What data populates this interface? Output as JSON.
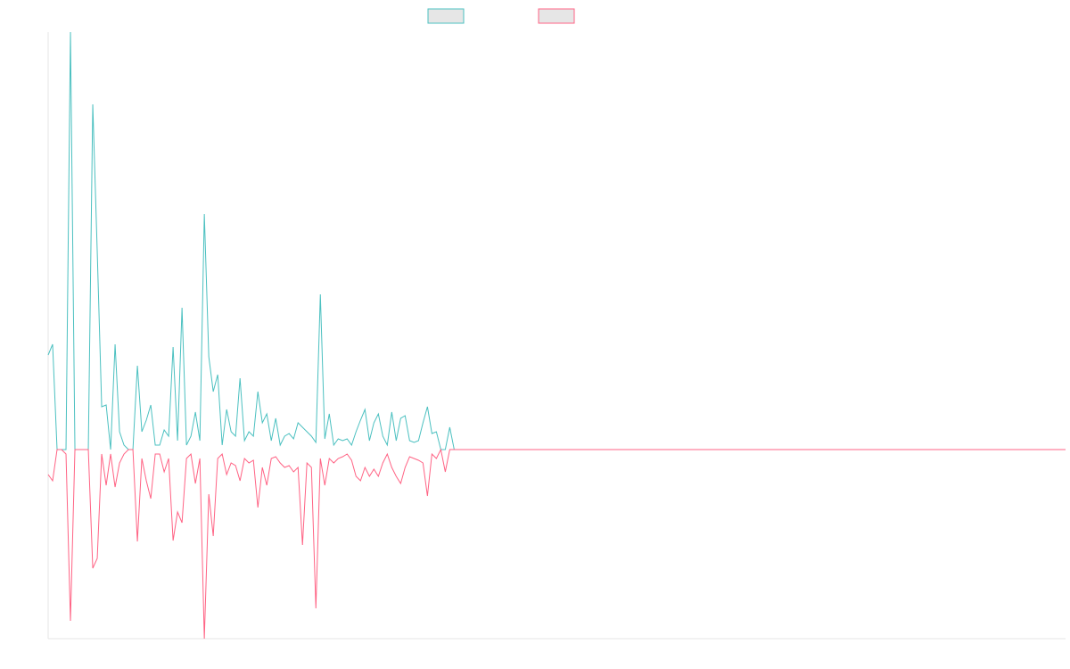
{
  "chart_data": {
    "type": "line",
    "ylim": [
      -212,
      468
    ],
    "series": [
      {
        "color": "#4bc0c0",
        "values": [
          106,
          118,
          0,
          0,
          0,
          468,
          0,
          0,
          0,
          0,
          387,
          222,
          48,
          50,
          0,
          118,
          20,
          5,
          0,
          0,
          94,
          20,
          33,
          50,
          5,
          5,
          22,
          15,
          115,
          10,
          159,
          5,
          15,
          42,
          10,
          264,
          104,
          65,
          84,
          5,
          45,
          20,
          15,
          80,
          10,
          20,
          15,
          65,
          30,
          40,
          10,
          35,
          5,
          15,
          18,
          12,
          30,
          25,
          20,
          15,
          8,
          174,
          12,
          40,
          5,
          12,
          10,
          12,
          5,
          20,
          33,
          45,
          10,
          30,
          40,
          15,
          5,
          42,
          10,
          35,
          38,
          10,
          8,
          10,
          30,
          48,
          18,
          20,
          0,
          0,
          25,
          0,
          0,
          0,
          0,
          0,
          0,
          0,
          0,
          0,
          0,
          0,
          0,
          0,
          0,
          0,
          0,
          0,
          0,
          0,
          0,
          0,
          0,
          0,
          0,
          0,
          0,
          0,
          0,
          0,
          0,
          0,
          0,
          0,
          0,
          0,
          0,
          0,
          0,
          0,
          0,
          0,
          0,
          0,
          0,
          0,
          0,
          0,
          0,
          0,
          0,
          0,
          0,
          0,
          0,
          0,
          0,
          0,
          0,
          0,
          0,
          0,
          0,
          0,
          0,
          0,
          0,
          0,
          0,
          0,
          0,
          0,
          0,
          0,
          0,
          0,
          0,
          0,
          0,
          0,
          0,
          0,
          0,
          0,
          0,
          0,
          0,
          0,
          0,
          0,
          0,
          0,
          0,
          0,
          0,
          0,
          0,
          0,
          0,
          0,
          0,
          0,
          0,
          0,
          0,
          0,
          0,
          0,
          0,
          0,
          0,
          0,
          0,
          0,
          0,
          0,
          0,
          0,
          0,
          0,
          0,
          0,
          0,
          0,
          0,
          0,
          0,
          0,
          0,
          0,
          0,
          0,
          0,
          0,
          0,
          0,
          0,
          0,
          0
        ]
      },
      {
        "color": "#ff6384",
        "values": [
          -28,
          -35,
          0,
          0,
          -5,
          -192,
          0,
          0,
          0,
          0,
          -133,
          -122,
          -5,
          -40,
          -5,
          -42,
          -15,
          -5,
          0,
          0,
          -103,
          -10,
          -35,
          -55,
          -5,
          -5,
          -25,
          -10,
          -102,
          -70,
          -82,
          -10,
          -5,
          -38,
          -10,
          -212,
          -50,
          -97,
          -10,
          -5,
          -28,
          -15,
          -18,
          -35,
          -10,
          -15,
          -12,
          -65,
          -20,
          -40,
          -10,
          -8,
          -15,
          -20,
          -18,
          -25,
          -20,
          -107,
          -15,
          -20,
          -178,
          -10,
          -40,
          -10,
          -15,
          -10,
          -8,
          -5,
          -12,
          -30,
          -35,
          -20,
          -30,
          -22,
          -30,
          -15,
          -5,
          -20,
          -30,
          -38,
          -20,
          -8,
          -10,
          -12,
          -15,
          -52,
          -5,
          -10,
          0,
          -25,
          0,
          0,
          0,
          0,
          0,
          0,
          0,
          0,
          0,
          0,
          0,
          0,
          0,
          0,
          0,
          0,
          0,
          0,
          0,
          0,
          0,
          0,
          0,
          0,
          0,
          0,
          0,
          0,
          0,
          0,
          0,
          0,
          0,
          0,
          0,
          0,
          0,
          0,
          0,
          0,
          0,
          0,
          0,
          0,
          0,
          0,
          0,
          0,
          0,
          0,
          0,
          0,
          0,
          0,
          0,
          0,
          0,
          0,
          0,
          0,
          0,
          0,
          0,
          0,
          0,
          0,
          0,
          0,
          0,
          0,
          0,
          0,
          0,
          0,
          0,
          0,
          0,
          0,
          0,
          0,
          0,
          0,
          0,
          0,
          0,
          0,
          0,
          0,
          0,
          0,
          0,
          0,
          0,
          0,
          0,
          0,
          0,
          0,
          0,
          0,
          0,
          0,
          0,
          0,
          0,
          0,
          0,
          0,
          0,
          0,
          0,
          0,
          0,
          0,
          0,
          0,
          0,
          0,
          0,
          0,
          0,
          0,
          0,
          0,
          0,
          0,
          0,
          0,
          0,
          0,
          0,
          0,
          0,
          0,
          0,
          0,
          0,
          0,
          0
        ]
      }
    ]
  }
}
